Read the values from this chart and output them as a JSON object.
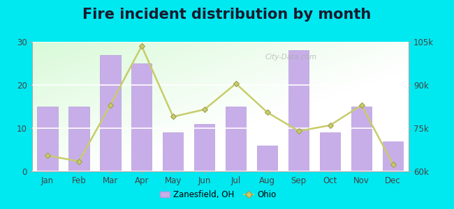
{
  "title": "Fire incident distribution by month",
  "months": [
    "Jan",
    "Feb",
    "Mar",
    "Apr",
    "May",
    "Jun",
    "Jul",
    "Aug",
    "Sep",
    "Oct",
    "Nov",
    "Dec"
  ],
  "bar_values": [
    15,
    15,
    27,
    25,
    9,
    11,
    15,
    6,
    28,
    9,
    15,
    7
  ],
  "line_values": [
    65500,
    63500,
    83000,
    103500,
    79000,
    81500,
    90500,
    80500,
    74000,
    76000,
    83000,
    62500
  ],
  "bar_color": "#c8aee8",
  "bar_edge_color": "#b39ddb",
  "line_color": "#c8cc6a",
  "line_marker": "D",
  "line_marker_color": "#c8cc6a",
  "outer_background": "#00e8f0",
  "ylim_left": [
    0,
    30
  ],
  "ylim_right": [
    60000,
    105000
  ],
  "yticks_left": [
    0,
    10,
    20,
    30
  ],
  "yticks_right": [
    60000,
    75000,
    90000,
    105000
  ],
  "ytick_labels_right": [
    "60k",
    "75k",
    "90k",
    "105k"
  ],
  "title_fontsize": 15,
  "legend_label_bar": "Zanesfield, OH",
  "legend_label_line": "Ohio",
  "watermark": "City-Data.com"
}
